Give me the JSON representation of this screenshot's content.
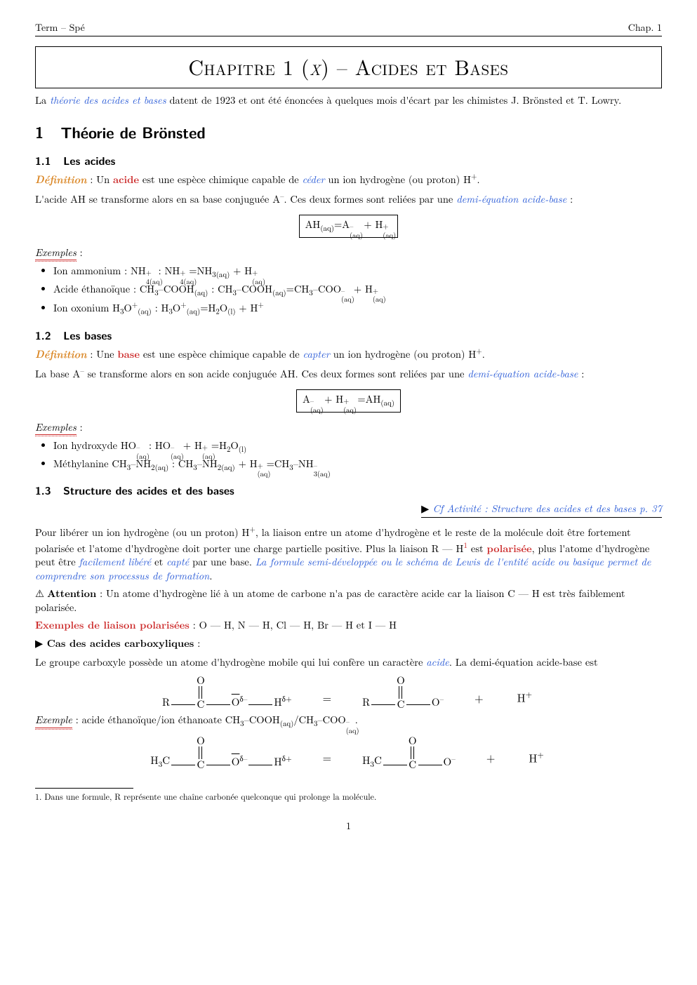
{
  "header": {
    "left": "Term – Spé",
    "right": "Chap. 1"
  },
  "chapter": {
    "pre": "Chapitre 1 (",
    "chi": "χ",
    "post": ") – Acides et Bases"
  },
  "intro": {
    "a": "La ",
    "b": "théorie des acides et bases",
    "c": " datent de 1923 et ont été énoncées à quelques mois d'écart par les chimistes J. Brönsted et T. Lowry."
  },
  "s1": {
    "num": "1",
    "title": "Théorie de Brönsted"
  },
  "s11": {
    "num": "1.1",
    "title": "Les acides"
  },
  "s11def": {
    "def": "Définition",
    "a": " : Un ",
    "acide": "acide",
    "b": " est une espèce chimique capable de ",
    "ceder": "céder",
    "c": " un ion hydrogène (ou proton) H",
    "sup": "+",
    "d": "."
  },
  "s11line2": {
    "a": "L'acide AH se transforme alors en sa base conjuguée A",
    "sup": "–",
    "b": ". Ces deux formes sont reliées par une ",
    "term": "demi-équation acide-base",
    "c": " :"
  },
  "eq1": "AH(aq)=A(aq)– + H(aq)+",
  "ex_label": "Exemples",
  "colon": " :",
  "s11ex": {
    "i1": {
      "a": "Ion ammonium : NH",
      "b": " : NH",
      "c": "=NH",
      "d": " + H"
    },
    "i2": {
      "a": "Acide éthanoïque : CH",
      "b": "–COOH",
      "c": " : CH",
      "d": "–COOH",
      "e": "=CH",
      "f": "–COO",
      "g": " + H"
    },
    "i3": {
      "a": "Ion oxonium H",
      "b": "O",
      "c": " : H",
      "d": "O",
      "e": "=H",
      "f": "O",
      "g": " + H"
    }
  },
  "s12": {
    "num": "1.2",
    "title": "Les bases"
  },
  "s12def": {
    "def": "Définition",
    "a": " : Une ",
    "base": "base",
    "b": " est une espèce chimique capable de ",
    "capter": "capter",
    "c": " un ion hydrogène (ou proton) H",
    "sup": "+",
    "d": "."
  },
  "s12line2": {
    "a": "La base A",
    "sup": "–",
    "b": " se transforme alors en son acide conjuguée AH. Ces deux formes sont reliées par une ",
    "term": "demi-équation acide-base",
    "c": " :"
  },
  "s12ex": {
    "i1": {
      "a": "Ion hydroxyde HO",
      "b": " : HO",
      "c": " + H",
      "d": "=H",
      "e": "O"
    },
    "i2": {
      "a": "Méthylanine CH",
      "b": "–NH",
      "c": " : CH",
      "d": "–NH",
      "e": " + H",
      "f": "=CH",
      "g": "–NH"
    }
  },
  "s13": {
    "num": "1.3",
    "title": "Structure des acides et des bases"
  },
  "activ": {
    "tri": "▶",
    "a": " Cf Activité : Structure des acides et des bases p. 37"
  },
  "s13p": {
    "a": "Pour libérer un ion hydrogène (ou un proton) H",
    "sup": "+",
    "b": ", la liaison entre un atome d'hydrogène et le reste de la molécule doit être fortement polarisée et l'atome d'hydrogène doit porter une charge partielle positive. Plus la liaison R ",
    "bond": "—",
    "c": " H",
    "fn": "1",
    "d": " est ",
    "pol": "polarisée",
    "e": ", plus l'atome d'hydrogène peut être ",
    "facil": "facilement libéré",
    "f": " et ",
    "capte": "capté",
    "g": " par une base. ",
    "long": "La formule semi-développée ou le schéma de Lewis de l'entité acide ou basique permet de comprendre son processus de formation",
    "h": "."
  },
  "warn": {
    "lbl": "Attention",
    "a": " : Un atome d'hydrogène lié à un atome de carbone n'a pas de caractère acide car la liaison C ",
    "bond": "—",
    "b": " H est très faiblement polarisée."
  },
  "expol": {
    "lbl": "Exemples de liaison polarisées",
    "a": "  : O ",
    "b": " H, N ",
    "c": " H, Cl ",
    "d": " H, Br ",
    "e": " H et I ",
    "f": " H"
  },
  "carbox": {
    "tri": "▶",
    "lbl": " Cas des acides carboxyliques",
    "colon": " :"
  },
  "carboxp": {
    "a": "Le groupe carboxyle possède un atome d'hydrogène mobile qui lui confère un caractère ",
    "acide": "acide",
    "b": ". La demi-équation acide-base est"
  },
  "mol1": {
    "R": "R",
    "C": "C",
    "O": "O",
    "Obar": "O",
    "dminus": "δ–",
    "H": "H",
    "dplus": "δ+",
    "eq": "=",
    "Om": "O",
    "plus": "+",
    "Hp": "H",
    "sup": "+",
    "minus": "–"
  },
  "exline": {
    "lbl": "Exemple",
    "a": " : acide éthanoïque/ion éthanoate CH",
    "b": "–COOH",
    "c": "/CH",
    "d": "–COO",
    "e": "."
  },
  "mol2": {
    "R": "H3C"
  },
  "footnote": {
    "n": "1.",
    "t": " Dans une formule, R représente une chaîne carbonée quelconque qui prolonge la molécule."
  },
  "page": "1"
}
